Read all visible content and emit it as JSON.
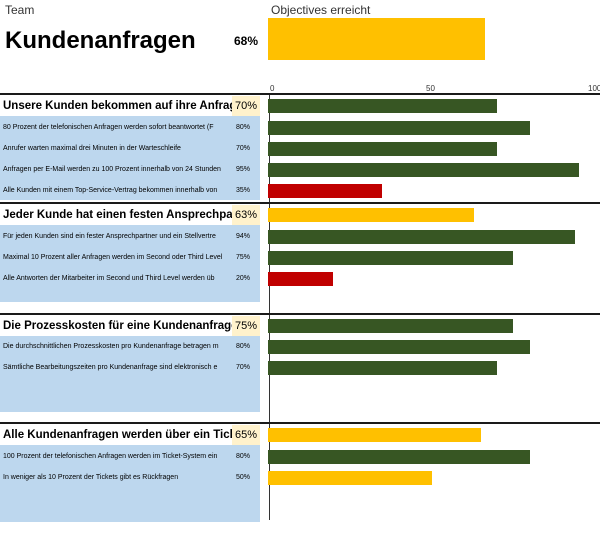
{
  "header": {
    "team_label": "Team",
    "title": "Kundenanfragen",
    "overall_percent": "68%",
    "overall_value": 68,
    "objectives_label": "Objectives erreicht"
  },
  "axis": {
    "ticks": [
      "0",
      "50",
      "100"
    ],
    "range": [
      0,
      100
    ]
  },
  "colors": {
    "accent": "#FFC000",
    "good": "#375623",
    "bad": "#C00000",
    "panel": "#BDD7EE",
    "pct_bg": "#FFF2CC"
  },
  "sections": [
    {
      "title": "Unsere Kunden bekommen auf ihre Anfragen sofort",
      "percent": "70%",
      "value": 70,
      "items": [
        {
          "label": "80 Prozent der telefonischen Anfragen werden sofort beantwortet (F",
          "percent": "80%",
          "value": 80,
          "status": "good"
        },
        {
          "label": "Anrufer warten maximal drei Minuten in der Warteschleife",
          "percent": "70%",
          "value": 70,
          "status": "good"
        },
        {
          "label": "Anfragen per E-Mail werden zu 100 Prozent innerhalb von 24 Stunden",
          "percent": "95%",
          "value": 95,
          "status": "good"
        },
        {
          "label": "Alle Kunden mit einem Top-Service-Vertrag bekommen innerhalb von",
          "percent": "35%",
          "value": 35,
          "status": "bad"
        }
      ]
    },
    {
      "title": "Jeder Kunde hat einen festen Ansprechpartner im",
      "percent": "63%",
      "value": 63,
      "items": [
        {
          "label": "Für jeden Kunden sind ein fester Ansprechpartner und ein Stellvertre",
          "percent": "94%",
          "value": 94,
          "status": "good"
        },
        {
          "label": "Maximal 10 Prozent aller Anfragen werden im Second oder Third Level",
          "percent": "75%",
          "value": 75,
          "status": "good"
        },
        {
          "label": "Alle Antworten der Mitarbeiter im Second und Third Level werden üb",
          "percent": "20%",
          "value": 20,
          "status": "bad"
        }
      ]
    },
    {
      "title": "Die Prozesskosten für eine Kundenanfrage sind gering",
      "percent": "75%",
      "value": 75,
      "items": [
        {
          "label": "Die durchschnittlichen Prozesskosten pro Kundenanfrage betragen m",
          "percent": "80%",
          "value": 80,
          "status": "good"
        },
        {
          "label": "Sämtliche Bearbeitungszeiten pro Kundenanfrage sind elektronisch e",
          "percent": "70%",
          "value": 70,
          "status": "good"
        }
      ]
    },
    {
      "title": "Alle Kundenanfragen werden über ein Ticket-System",
      "percent": "65%",
      "value": 65,
      "items": [
        {
          "label": "100 Prozent der telefonischen Anfragen werden im Ticket-System ein",
          "percent": "80%",
          "value": 80,
          "status": "good"
        },
        {
          "label": "In weniger als 10 Prozent der Tickets gibt es Rückfragen",
          "percent": "50%",
          "value": 50,
          "status": "accent"
        }
      ]
    }
  ]
}
